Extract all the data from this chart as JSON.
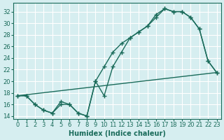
{
  "xlabel": "Humidex (Indice chaleur)",
  "ylabel": "",
  "bg_color": "#d6eef0",
  "grid_color": "#ffffff",
  "line_color": "#1a6b5a",
  "xlim": [
    -0.5,
    23.5
  ],
  "ylim": [
    13.5,
    33.5
  ],
  "yticks": [
    14,
    16,
    18,
    20,
    22,
    24,
    26,
    28,
    30,
    32
  ],
  "xticks": [
    0,
    1,
    2,
    3,
    4,
    5,
    6,
    7,
    8,
    9,
    10,
    11,
    12,
    13,
    14,
    15,
    16,
    17,
    18,
    19,
    20,
    21,
    22,
    23
  ],
  "line1_x": [
    0,
    1,
    2,
    3,
    4,
    5,
    6,
    7,
    8,
    9,
    10,
    11,
    12,
    13,
    14,
    15,
    16,
    17,
    18,
    19,
    20,
    21,
    22,
    23
  ],
  "line1_y": [
    17.5,
    17.5,
    16.0,
    15.0,
    14.5,
    16.5,
    16.0,
    14.5,
    14.0,
    20.0,
    17.5,
    22.5,
    25.0,
    27.5,
    28.5,
    29.5,
    31.5,
    32.5,
    32.0,
    32.0,
    31.0,
    29.0,
    23.5,
    21.5
  ],
  "line2_x": [
    0,
    23
  ],
  "line2_y": [
    17.5,
    21.5
  ],
  "line3_x": [
    0,
    1,
    2,
    3,
    4,
    5,
    6,
    7,
    8,
    9,
    10,
    11,
    12,
    13,
    14,
    15,
    16,
    17,
    18,
    19,
    20,
    21,
    22,
    23
  ],
  "line3_y": [
    17.5,
    17.5,
    16.0,
    15.0,
    14.5,
    16.0,
    16.0,
    14.5,
    14.0,
    20.0,
    22.5,
    25.0,
    26.5,
    27.5,
    28.5,
    29.5,
    31.0,
    32.5,
    32.0,
    32.0,
    31.0,
    29.0,
    23.5,
    21.5
  ]
}
